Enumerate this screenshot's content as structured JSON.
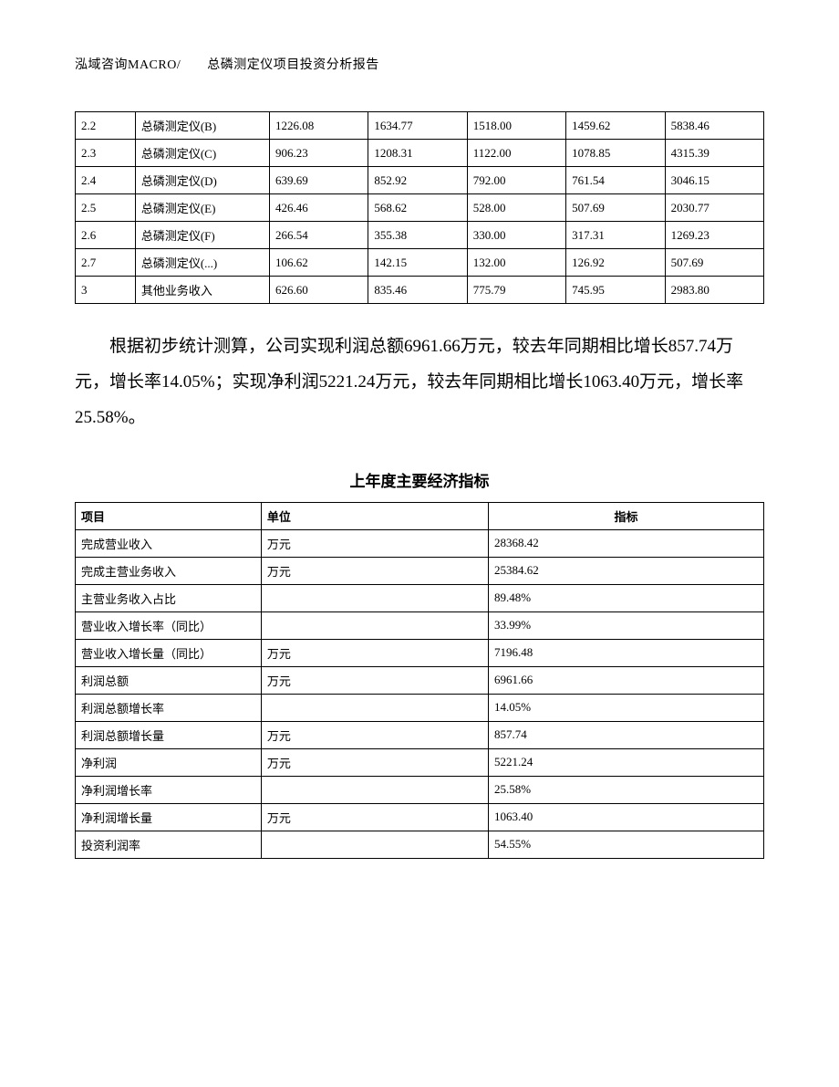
{
  "header": "泓域咨询MACRO/　　总磷测定仪项目投资分析报告",
  "table1_rows": [
    {
      "c0": "2.2",
      "c1": "总磷测定仪(B)",
      "c2": "1226.08",
      "c3": "1634.77",
      "c4": "1518.00",
      "c5": "1459.62",
      "c6": "5838.46"
    },
    {
      "c0": "2.3",
      "c1": "总磷测定仪(C)",
      "c2": "906.23",
      "c3": "1208.31",
      "c4": "1122.00",
      "c5": "1078.85",
      "c6": "4315.39"
    },
    {
      "c0": "2.4",
      "c1": "总磷测定仪(D)",
      "c2": "639.69",
      "c3": "852.92",
      "c4": "792.00",
      "c5": "761.54",
      "c6": "3046.15"
    },
    {
      "c0": "2.5",
      "c1": "总磷测定仪(E)",
      "c2": "426.46",
      "c3": "568.62",
      "c4": "528.00",
      "c5": "507.69",
      "c6": "2030.77"
    },
    {
      "c0": "2.6",
      "c1": "总磷测定仪(F)",
      "c2": "266.54",
      "c3": "355.38",
      "c4": "330.00",
      "c5": "317.31",
      "c6": "1269.23"
    },
    {
      "c0": "2.7",
      "c1": "总磷测定仪(...)",
      "c2": "106.62",
      "c3": "142.15",
      "c4": "132.00",
      "c5": "126.92",
      "c6": "507.69"
    },
    {
      "c0": "3",
      "c1": "其他业务收入",
      "c2": "626.60",
      "c3": "835.46",
      "c4": "775.79",
      "c5": "745.95",
      "c6": "2983.80"
    }
  ],
  "paragraph": "根据初步统计测算，公司实现利润总额6961.66万元，较去年同期相比增长857.74万元，增长率14.05%；实现净利润5221.24万元，较去年同期相比增长1063.40万元，增长率25.58%。",
  "table2_title": "上年度主要经济指标",
  "table2_header": {
    "h0": "项目",
    "h1": "单位",
    "h2": "指标"
  },
  "table2_rows": [
    {
      "c0": "完成营业收入",
      "c1": "万元",
      "c2": "28368.42"
    },
    {
      "c0": "完成主营业务收入",
      "c1": "万元",
      "c2": "25384.62"
    },
    {
      "c0": "主营业务收入占比",
      "c1": "",
      "c2": "89.48%"
    },
    {
      "c0": "营业收入增长率（同比）",
      "c1": "",
      "c2": "33.99%"
    },
    {
      "c0": "营业收入增长量（同比）",
      "c1": "万元",
      "c2": "7196.48"
    },
    {
      "c0": "利润总额",
      "c1": "万元",
      "c2": "6961.66"
    },
    {
      "c0": "利润总额增长率",
      "c1": "",
      "c2": "14.05%"
    },
    {
      "c0": "利润总额增长量",
      "c1": "万元",
      "c2": "857.74"
    },
    {
      "c0": "净利润",
      "c1": "万元",
      "c2": "5221.24"
    },
    {
      "c0": "净利润增长率",
      "c1": "",
      "c2": "25.58%"
    },
    {
      "c0": "净利润增长量",
      "c1": "万元",
      "c2": "1063.40"
    },
    {
      "c0": "投资利润率",
      "c1": "",
      "c2": "54.55%"
    }
  ]
}
